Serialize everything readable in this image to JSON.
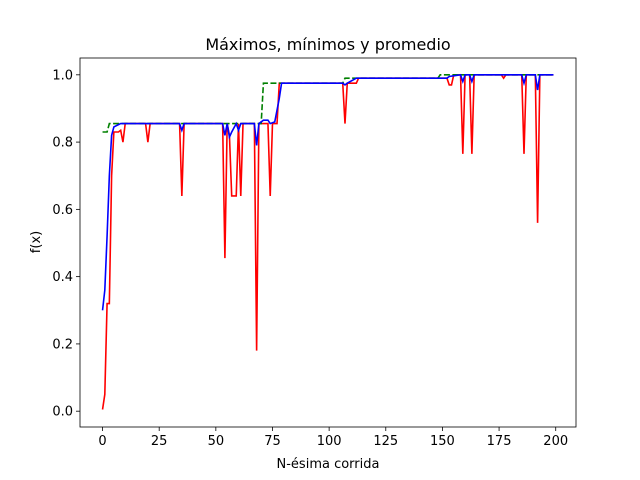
{
  "chart_data": {
    "type": "line",
    "title": "Máximos, mínimos y promedio",
    "xlabel": "N-ésima corrida",
    "ylabel": "f(x)",
    "xlim": [
      -9.95,
      208.95
    ],
    "ylim": [
      -0.047,
      1.05
    ],
    "xticks": [
      0,
      25,
      50,
      75,
      100,
      125,
      150,
      175,
      200
    ],
    "yticks": [
      {
        "value": 0,
        "label": "0.0"
      },
      {
        "value": 0.2,
        "label": "0.2"
      },
      {
        "value": 0.4,
        "label": "0.4"
      },
      {
        "value": 0.6,
        "label": "0.6"
      },
      {
        "value": 0.8,
        "label": "0.8"
      },
      {
        "value": 1,
        "label": "1.0"
      }
    ],
    "grid": false,
    "series": [
      {
        "color": "red",
        "linestyle": "-",
        "x": [
          0,
          1,
          2,
          3,
          4,
          5,
          7,
          8,
          9,
          10,
          19,
          20,
          21,
          34,
          35,
          36,
          53,
          54,
          55,
          56,
          57,
          59,
          60,
          61,
          62,
          67,
          68,
          69,
          73,
          74,
          75,
          77,
          78,
          106,
          107,
          108,
          112,
          113,
          152,
          153,
          154,
          155,
          158,
          159,
          160,
          162,
          163,
          164,
          176,
          177,
          178,
          185,
          186,
          187,
          191,
          192,
          193,
          199
        ],
        "values": [
          0.005,
          0.05,
          0.32,
          0.32,
          0.7,
          0.83,
          0.83,
          0.835,
          0.8,
          0.855,
          0.855,
          0.8,
          0.855,
          0.855,
          0.64,
          0.855,
          0.855,
          0.455,
          0.855,
          0.82,
          0.64,
          0.64,
          0.855,
          0.64,
          0.855,
          0.855,
          0.18,
          0.855,
          0.855,
          0.64,
          0.855,
          0.855,
          0.975,
          0.975,
          0.855,
          0.975,
          0.975,
          0.99,
          0.99,
          0.97,
          0.97,
          1.0,
          1.0,
          0.765,
          1.0,
          1.0,
          0.765,
          1.0,
          1.0,
          0.99,
          1.0,
          1.0,
          0.765,
          1.0,
          1.0,
          0.56,
          1.0,
          1.0
        ]
      },
      {
        "color": "green",
        "linestyle": "--",
        "x": [
          0,
          2,
          3,
          70,
          71,
          106,
          107,
          148,
          149,
          199
        ],
        "values": [
          0.83,
          0.83,
          0.855,
          0.855,
          0.975,
          0.975,
          0.99,
          0.99,
          1.0,
          1.0
        ]
      },
      {
        "color": "blue",
        "linestyle": "-",
        "x": [
          0,
          1,
          2,
          3,
          4,
          5,
          8,
          34,
          35,
          36,
          53,
          54,
          55,
          56,
          57,
          59,
          60,
          61,
          67,
          68,
          69,
          71,
          73,
          74,
          76,
          78,
          79,
          106,
          107,
          108,
          112,
          152,
          153,
          158,
          159,
          160,
          162,
          163,
          164,
          185,
          186,
          187,
          191,
          192,
          193,
          199
        ],
        "values": [
          0.3,
          0.36,
          0.52,
          0.7,
          0.82,
          0.845,
          0.855,
          0.855,
          0.835,
          0.855,
          0.855,
          0.82,
          0.855,
          0.815,
          0.83,
          0.855,
          0.835,
          0.855,
          0.855,
          0.79,
          0.855,
          0.865,
          0.865,
          0.855,
          0.86,
          0.93,
          0.975,
          0.975,
          0.97,
          0.975,
          0.99,
          0.99,
          0.995,
          1.0,
          0.98,
          1.0,
          1.0,
          0.98,
          1.0,
          1.0,
          0.975,
          1.0,
          1.0,
          0.955,
          1.0,
          1.0
        ]
      }
    ]
  }
}
